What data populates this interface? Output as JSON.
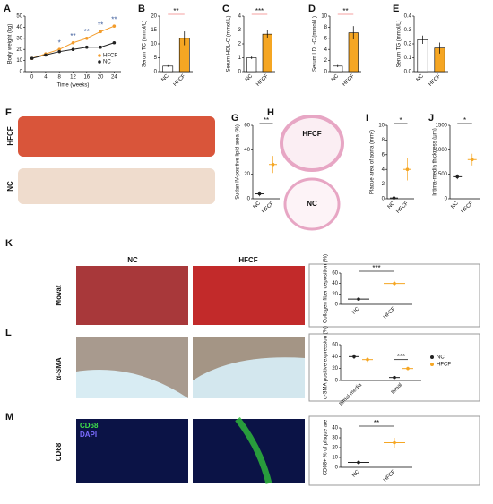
{
  "chart_data": [
    {
      "type": "line",
      "panel": "A",
      "ylabel": "Body weight (kg)",
      "xlabel": "Time (weeks)",
      "x": [
        0,
        4,
        8,
        12,
        16,
        20,
        24
      ],
      "xlim": [
        -2,
        26
      ],
      "xticks": [
        0,
        4,
        8,
        12,
        16,
        20,
        24
      ],
      "ylim": [
        0,
        50
      ],
      "yticks": [
        0,
        10,
        20,
        30,
        40,
        50
      ],
      "series": [
        {
          "name": "HFCF",
          "color": "#f39c2b",
          "values": [
            12,
            16,
            20,
            26,
            30,
            36,
            41
          ]
        },
        {
          "name": "NC",
          "color": "#222222",
          "values": [
            12,
            15,
            18,
            20,
            22,
            22,
            26
          ]
        }
      ],
      "annotations": [
        null,
        null,
        "*",
        "**",
        "**",
        "**",
        "**"
      ]
    },
    {
      "type": "bar",
      "panel": "B",
      "ylabel": "Serum TC (mmol/L)",
      "categories": [
        "NC",
        "HFCF"
      ],
      "values": [
        2,
        12
      ],
      "errors": [
        0.3,
        2.5
      ],
      "colors": [
        "#ffffff",
        "#f5a623"
      ],
      "ylim": [
        0,
        20
      ],
      "yticks": [
        0,
        5,
        10,
        15,
        20
      ],
      "annotations": [
        {
          "label": "**"
        }
      ],
      "annotation_color": "#f08080"
    },
    {
      "type": "bar",
      "panel": "C",
      "ylabel": "Serum HDL-C (mmol/L)",
      "categories": [
        "NC",
        "HFCF"
      ],
      "values": [
        1.0,
        2.7
      ],
      "errors": [
        0.1,
        0.3
      ],
      "colors": [
        "#ffffff",
        "#f5a623"
      ],
      "ylim": [
        0,
        4
      ],
      "yticks": [
        0,
        1,
        2,
        3,
        4
      ],
      "annotations": [
        {
          "label": "***"
        }
      ],
      "annotation_color": "#f08080"
    },
    {
      "type": "bar",
      "panel": "D",
      "ylabel": "Serum LDL-C (mmol/L)",
      "categories": [
        "NC",
        "HFCF"
      ],
      "values": [
        1,
        7
      ],
      "errors": [
        0.2,
        1.2
      ],
      "colors": [
        "#ffffff",
        "#f5a623"
      ],
      "ylim": [
        0,
        10
      ],
      "yticks": [
        0,
        2,
        4,
        6,
        8,
        10
      ],
      "annotations": [
        {
          "label": "**"
        }
      ],
      "annotation_color": "#f08080"
    },
    {
      "type": "bar",
      "panel": "E",
      "ylabel": "Serum TG (mmol/L)",
      "categories": [
        "NC",
        "HFCF"
      ],
      "values": [
        0.23,
        0.17
      ],
      "errors": [
        0.03,
        0.04
      ],
      "colors": [
        "#ffffff",
        "#f5a623"
      ],
      "ylim": [
        0,
        0.4
      ],
      "yticks": [
        {
          "value": 0,
          "label": "0.0"
        },
        0.1,
        0.2,
        0.3,
        0.4
      ]
    },
    {
      "type": "dot",
      "panel": "G",
      "ylabel": "Sudan IV-positive lipid area (%)",
      "categories": [
        "NC",
        "HFCF"
      ],
      "values": [
        4,
        28
      ],
      "errors": [
        2,
        7
      ],
      "colors": [
        "#222222",
        "#f5a623"
      ],
      "ylim": [
        0,
        60
      ],
      "yticks": [
        0,
        20,
        40,
        60
      ],
      "annotations": [
        {
          "label": "**"
        }
      ],
      "annotation_color": "#222222"
    },
    {
      "type": "dot",
      "panel": "I",
      "ylabel": "Plaque area of aorta (mm²)",
      "categories": [
        "NC",
        "HFCF"
      ],
      "values": [
        0.1,
        4
      ],
      "errors": [
        0.05,
        1.5
      ],
      "colors": [
        "#222222",
        "#f5a623"
      ],
      "ylim": [
        0,
        10
      ],
      "yticks": [
        0,
        2,
        4,
        6,
        8,
        10
      ],
      "annotations": [
        {
          "label": "*"
        }
      ],
      "annotation_color": "#222222"
    },
    {
      "type": "dot",
      "panel": "J",
      "ylabel": "Intima-media thickness (μm)",
      "categories": [
        "NC",
        "HFCF"
      ],
      "values": [
        450,
        800
      ],
      "errors": [
        50,
        120
      ],
      "colors": [
        "#222222",
        "#f5a623"
      ],
      "ylim": [
        0,
        1500
      ],
      "yticks": [
        0,
        500,
        1000,
        1500
      ],
      "annotations": [
        {
          "label": "*"
        }
      ],
      "annotation_color": "#222222"
    },
    {
      "type": "dot",
      "ylabel": "Collagen fiber deposition (%)",
      "categories": [
        "NC",
        "HFCF"
      ],
      "values": [
        10,
        40
      ],
      "errors": [
        2,
        5
      ],
      "colors": [
        "#222222",
        "#f5a623"
      ],
      "ylim": [
        0,
        60
      ],
      "yticks": [
        0,
        20,
        40,
        60
      ],
      "annotations": [
        {
          "label": "***"
        }
      ],
      "annotation_color": "#222222"
    },
    {
      "type": "grouped",
      "ylabel": "α-SMA positive expression (%)",
      "categories": [
        "Itimal-media",
        "Itimal"
      ],
      "series": [
        {
          "name": "NC",
          "color": "#222222",
          "values": [
            40,
            5
          ],
          "errors": [
            4,
            2
          ]
        },
        {
          "name": "HFCF",
          "color": "#f5a623",
          "values": [
            35,
            20
          ],
          "errors": [
            4,
            3
          ]
        }
      ],
      "ylim": [
        0,
        60
      ],
      "yticks": [
        0,
        20,
        40,
        60
      ],
      "annotations": [
        {
          "label": "***",
          "category": 1
        }
      ],
      "annotation_color": "#222222"
    },
    {
      "type": "dot",
      "ylabel": "CD68+ % of plaque are",
      "categories": [
        "NC",
        "HFCF"
      ],
      "values": [
        5,
        25
      ],
      "errors": [
        2,
        5
      ],
      "colors": [
        "#222222",
        "#f5a623"
      ],
      "ylim": [
        0,
        40
      ],
      "yticks": [
        0,
        10,
        20,
        30,
        40
      ],
      "annotations": [
        {
          "label": "**"
        }
      ],
      "annotation_color": "#222222"
    }
  ],
  "images": {
    "F": {
      "panel": "F",
      "labels": [
        "HFCF",
        "NC"
      ]
    },
    "H": {
      "panel": "H",
      "labels": [
        "HFCF",
        "NC"
      ]
    },
    "K": {
      "panel": "K",
      "stain": "Movat",
      "columns": [
        "NC",
        "HFCF"
      ]
    },
    "L": {
      "panel": "L",
      "stain": "α-SMA"
    },
    "M": {
      "panel": "M",
      "stain": "CD68",
      "channels": [
        "CD68",
        "DAPI"
      ]
    }
  }
}
